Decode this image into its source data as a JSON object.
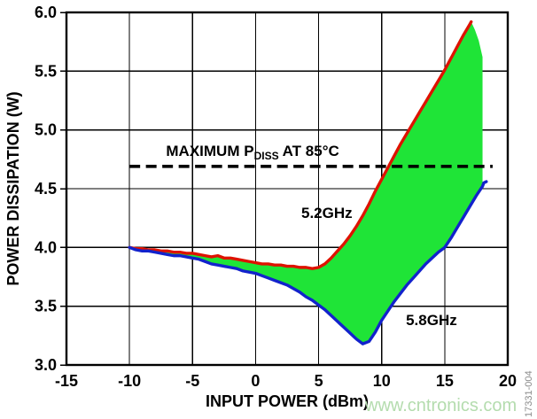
{
  "background": "#ffffff",
  "watermark": {
    "text": "www.cntronics.com",
    "color": "#b4dcae"
  },
  "figure_code": {
    "text": "17331-004",
    "color": "#8a8a8a"
  },
  "chart_data": {
    "type": "line",
    "title": "",
    "xlabel": "INPUT POWER (dBm)",
    "ylabel": "POWER DISSIPATION (W)",
    "xlim": [
      -15,
      20
    ],
    "ylim": [
      3.0,
      6.0
    ],
    "x_ticks": [
      -15,
      -10,
      -5,
      0,
      5,
      10,
      15,
      20
    ],
    "x_tick_labels": [
      "-15",
      "-10",
      "-5",
      "0",
      "5",
      "10",
      "15",
      "20"
    ],
    "y_ticks": [
      3.0,
      3.5,
      4.0,
      4.5,
      5.0,
      5.5,
      6.0
    ],
    "y_tick_labels": [
      "3.0",
      "3.5",
      "4.0",
      "4.5",
      "5.0",
      "5.5",
      "6.0"
    ],
    "grid": true,
    "grid_color": "#000000",
    "series": [
      {
        "name": "5.2GHz",
        "color": "#de1200",
        "x": [
          -10,
          -9.5,
          -9,
          -8.5,
          -8,
          -7.5,
          -7,
          -6.5,
          -6,
          -5.5,
          -5,
          -4.5,
          -4,
          -3.5,
          -3,
          -2.5,
          -2,
          -1.5,
          -1,
          -0.5,
          0,
          0.5,
          1,
          1.5,
          2,
          2.5,
          3,
          3.5,
          4,
          4.5,
          5,
          5.5,
          6,
          6.5,
          7,
          7.5,
          8,
          8.5,
          9,
          9.5,
          10,
          10.5,
          11,
          11.5,
          12,
          12.5,
          13,
          13.5,
          14,
          14.5,
          15,
          15.5,
          16,
          16.5,
          17,
          17.1
        ],
        "y": [
          4.0,
          3.99,
          3.99,
          3.98,
          3.98,
          3.97,
          3.97,
          3.96,
          3.96,
          3.95,
          3.95,
          3.94,
          3.93,
          3.92,
          3.93,
          3.91,
          3.91,
          3.9,
          3.89,
          3.88,
          3.87,
          3.86,
          3.86,
          3.85,
          3.85,
          3.84,
          3.84,
          3.83,
          3.83,
          3.82,
          3.83,
          3.86,
          3.91,
          3.97,
          4.03,
          4.1,
          4.18,
          4.27,
          4.37,
          4.48,
          4.58,
          4.68,
          4.78,
          4.88,
          4.97,
          5.06,
          5.15,
          5.24,
          5.33,
          5.42,
          5.51,
          5.61,
          5.71,
          5.81,
          5.9,
          5.92
        ]
      },
      {
        "name": "5.8GHz",
        "color": "#1222cc",
        "x": [
          -10,
          -9.5,
          -9,
          -8.5,
          -8,
          -7.5,
          -7,
          -6.5,
          -6,
          -5.5,
          -5,
          -4.5,
          -4,
          -3.5,
          -3,
          -2.5,
          -2,
          -1.5,
          -1,
          -0.5,
          0,
          0.5,
          1,
          1.5,
          2,
          2.5,
          3,
          3.5,
          4,
          4.5,
          5,
          5.5,
          6,
          6.5,
          7,
          7.5,
          8,
          8.5,
          9,
          9.5,
          10,
          10.5,
          11,
          11.5,
          12,
          12.5,
          13,
          13.5,
          14,
          14.5,
          15,
          15.5,
          16,
          16.5,
          17,
          17.5,
          18,
          18.1,
          18.3
        ],
        "y": [
          4.0,
          3.98,
          3.97,
          3.97,
          3.96,
          3.95,
          3.94,
          3.93,
          3.93,
          3.92,
          3.91,
          3.9,
          3.88,
          3.86,
          3.85,
          3.84,
          3.83,
          3.82,
          3.8,
          3.79,
          3.78,
          3.76,
          3.74,
          3.72,
          3.7,
          3.68,
          3.65,
          3.62,
          3.58,
          3.55,
          3.51,
          3.47,
          3.42,
          3.37,
          3.32,
          3.27,
          3.22,
          3.18,
          3.2,
          3.28,
          3.38,
          3.46,
          3.54,
          3.61,
          3.68,
          3.74,
          3.8,
          3.86,
          3.91,
          3.96,
          4.0,
          4.08,
          4.17,
          4.26,
          4.35,
          4.44,
          4.52,
          4.55,
          4.56
        ]
      }
    ],
    "fill_between": {
      "color": "#1fe437",
      "upper_extension_x": [
        17.4,
        17.7,
        18.0
      ],
      "upper_extension_y": [
        5.85,
        5.76,
        5.62
      ],
      "x_max": 18.0
    },
    "max_line": {
      "y": 4.69,
      "x_start": -10,
      "x_end": 18.8,
      "color": "#000000",
      "style": "dashed",
      "label_main": "MAXIMUM P",
      "label_sub": "DISS",
      "label_suffix": " AT 85°C",
      "label_x": -7.1,
      "label_y": 4.78
    },
    "annotations": [
      {
        "text": "5.2GHz",
        "x": 5.65,
        "y": 4.25,
        "anchor": "middle"
      },
      {
        "text": "5.8GHz",
        "x": 13.95,
        "y": 3.34,
        "anchor": "middle"
      }
    ],
    "legend": "none"
  }
}
